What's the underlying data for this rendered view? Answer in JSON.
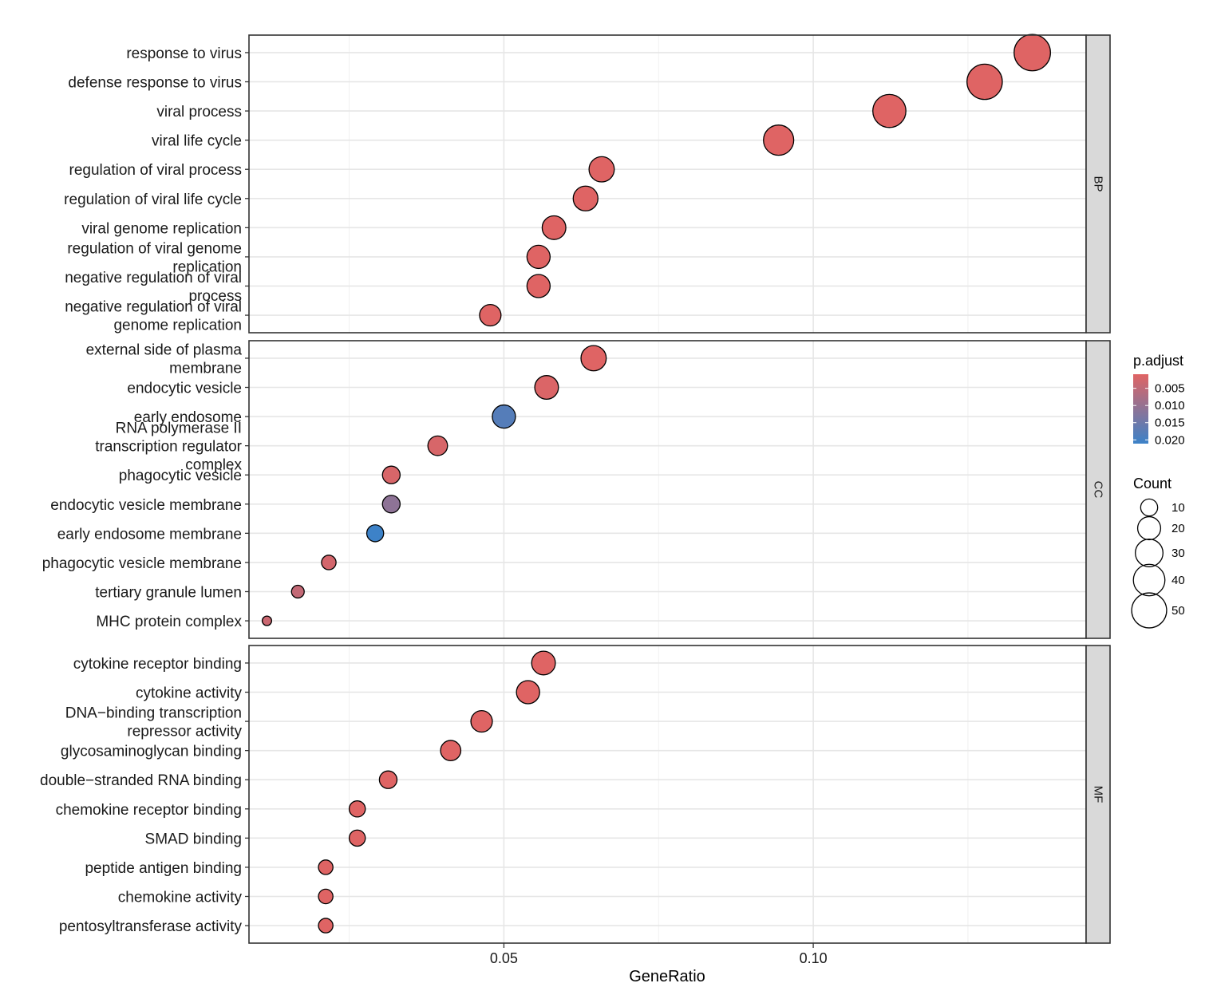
{
  "chart_data": {
    "type": "scatter",
    "subtype": "faceted-dotplot",
    "xlabel": "GeneRatio",
    "xlim": [
      0.0088,
      0.1441
    ],
    "xticks": [
      0.05,
      0.1
    ],
    "xtick_labels": [
      "0.05",
      "0.10"
    ],
    "x_minor_grid": [
      0.025,
      0.075,
      0.125
    ],
    "grid": true,
    "colors": {
      "low_padj": "#E06464",
      "high_padj": "#3C82C8"
    },
    "color_legend": {
      "title": "p.adjust",
      "range": [
        0.0009,
        0.0211
      ],
      "ticks": [
        0.005,
        0.01,
        0.015,
        0.02
      ],
      "tick_labels": [
        "0.005",
        "0.010",
        "0.015",
        "0.020"
      ]
    },
    "size_legend": {
      "title": "Count",
      "values": [
        10,
        20,
        30,
        40,
        50
      ],
      "labels": [
        "10",
        "20",
        "30",
        "40",
        "50"
      ]
    },
    "facets": [
      {
        "name": "BP",
        "points": [
          {
            "term": [
              "response to virus"
            ],
            "x": 0.1354,
            "count": 53,
            "padj": 0.001
          },
          {
            "term": [
              "defense response to virus"
            ],
            "x": 0.1277,
            "count": 50,
            "padj": 0.001
          },
          {
            "term": [
              "viral process"
            ],
            "x": 0.1123,
            "count": 44,
            "padj": 0.001
          },
          {
            "term": [
              "viral life cycle"
            ],
            "x": 0.0944,
            "count": 37,
            "padj": 0.001
          },
          {
            "term": [
              "regulation of viral process"
            ],
            "x": 0.0658,
            "count": 26,
            "padj": 0.001
          },
          {
            "term": [
              "regulation of viral life cycle"
            ],
            "x": 0.0632,
            "count": 25,
            "padj": 0.001
          },
          {
            "term": [
              "viral genome replication"
            ],
            "x": 0.0581,
            "count": 23,
            "padj": 0.001
          },
          {
            "term": [
              "regulation of viral genome",
              "replication"
            ],
            "x": 0.0556,
            "count": 22,
            "padj": 0.001
          },
          {
            "term": [
              "negative regulation of viral",
              "process"
            ],
            "x": 0.0556,
            "count": 22,
            "padj": 0.001
          },
          {
            "term": [
              "negative regulation of viral",
              "genome replication"
            ],
            "x": 0.0478,
            "count": 19,
            "padj": 0.001
          }
        ]
      },
      {
        "name": "CC",
        "points": [
          {
            "term": [
              "external side of plasma",
              "membrane"
            ],
            "x": 0.0645,
            "count": 26,
            "padj": 0.001
          },
          {
            "term": [
              "endocytic vesicle"
            ],
            "x": 0.0569,
            "count": 23,
            "padj": 0.0015
          },
          {
            "term": [
              "early endosome"
            ],
            "x": 0.05,
            "count": 22,
            "padj": 0.018
          },
          {
            "term": [
              "RNA polymerase II",
              "transcription regulator",
              "complex"
            ],
            "x": 0.0393,
            "count": 16,
            "padj": 0.002
          },
          {
            "term": [
              "phagocytic vesicle"
            ],
            "x": 0.0318,
            "count": 13,
            "padj": 0.002
          },
          {
            "term": [
              "endocytic vesicle membrane"
            ],
            "x": 0.0318,
            "count": 13,
            "padj": 0.011
          },
          {
            "term": [
              "early endosome membrane"
            ],
            "x": 0.0292,
            "count": 12,
            "padj": 0.021
          },
          {
            "term": [
              "phagocytic vesicle membrane"
            ],
            "x": 0.0217,
            "count": 9,
            "padj": 0.0025
          },
          {
            "term": [
              "tertiary granule lumen"
            ],
            "x": 0.0167,
            "count": 7,
            "padj": 0.0045
          },
          {
            "term": [
              "MHC protein complex"
            ],
            "x": 0.0117,
            "count": 4,
            "padj": 0.0035
          }
        ]
      },
      {
        "name": "MF",
        "points": [
          {
            "term": [
              "cytokine receptor binding"
            ],
            "x": 0.0564,
            "count": 23,
            "padj": 0.001
          },
          {
            "term": [
              "cytokine activity"
            ],
            "x": 0.0539,
            "count": 22,
            "padj": 0.001
          },
          {
            "term": [
              "DNA−binding transcription",
              "repressor activity"
            ],
            "x": 0.0464,
            "count": 19,
            "padj": 0.001
          },
          {
            "term": [
              "glycosaminoglycan binding"
            ],
            "x": 0.0414,
            "count": 17,
            "padj": 0.001
          },
          {
            "term": [
              "double−stranded RNA binding"
            ],
            "x": 0.0313,
            "count": 13,
            "padj": 0.001
          },
          {
            "term": [
              "chemokine receptor binding"
            ],
            "x": 0.0263,
            "count": 11,
            "padj": 0.001
          },
          {
            "term": [
              "SMAD binding"
            ],
            "x": 0.0263,
            "count": 11,
            "padj": 0.001
          },
          {
            "term": [
              "peptide antigen binding"
            ],
            "x": 0.0212,
            "count": 9,
            "padj": 0.001
          },
          {
            "term": [
              "chemokine activity"
            ],
            "x": 0.0212,
            "count": 9,
            "padj": 0.001
          },
          {
            "term": [
              "pentosyltransferase activity"
            ],
            "x": 0.0212,
            "count": 9,
            "padj": 0.001
          }
        ]
      }
    ]
  }
}
